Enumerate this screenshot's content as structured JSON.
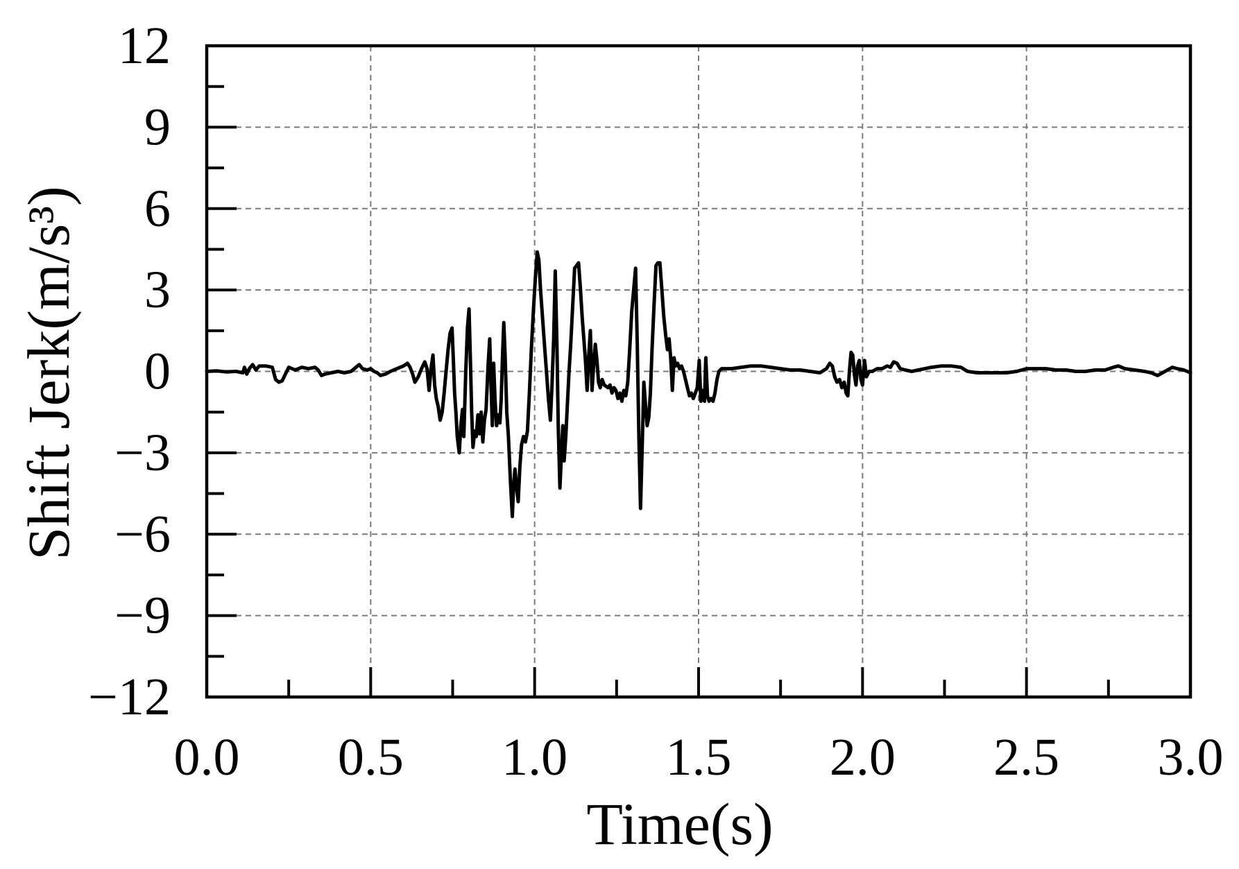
{
  "chart_data": {
    "type": "line",
    "xlabel": "Time(s)",
    "ylabel": "Shift Jerk(m/s³)",
    "xlim": [
      0,
      3
    ],
    "ylim": [
      -12,
      12
    ],
    "xticks": [
      0,
      0.5,
      1,
      1.5,
      2,
      2.5,
      3
    ],
    "xtick_labels": [
      "0.0",
      "0.5",
      "1.0",
      "1.5",
      "2.0",
      "2.5",
      "3.0"
    ],
    "yticks": [
      12,
      9,
      6,
      3,
      0,
      -3,
      -6,
      -9,
      -12
    ],
    "ytick_labels": [
      "12",
      "9",
      "6",
      "3",
      "0",
      "−3",
      "−6",
      "−9",
      "−12"
    ],
    "grid": true,
    "line_color": "#000000",
    "x": [
      0.0,
      0.03,
      0.06,
      0.09,
      0.11,
      0.115,
      0.122,
      0.13,
      0.14,
      0.15,
      0.16,
      0.18,
      0.2,
      0.21,
      0.22,
      0.23,
      0.24,
      0.25,
      0.27,
      0.29,
      0.31,
      0.33,
      0.34,
      0.35,
      0.36,
      0.38,
      0.4,
      0.42,
      0.44,
      0.455,
      0.465,
      0.475,
      0.49,
      0.5,
      0.51,
      0.52,
      0.53,
      0.545,
      0.56,
      0.58,
      0.6,
      0.612,
      0.62,
      0.628,
      0.635,
      0.645,
      0.655,
      0.665,
      0.672,
      0.678,
      0.684,
      0.69,
      0.695,
      0.7,
      0.706,
      0.712,
      0.718,
      0.724,
      0.73,
      0.736,
      0.742,
      0.748,
      0.752,
      0.756,
      0.76,
      0.764,
      0.77,
      0.775,
      0.78,
      0.784,
      0.79,
      0.795,
      0.8,
      0.804,
      0.808,
      0.812,
      0.817,
      0.822,
      0.827,
      0.832,
      0.837,
      0.842,
      0.847,
      0.852,
      0.858,
      0.863,
      0.867,
      0.871,
      0.875,
      0.879,
      0.884,
      0.889,
      0.894,
      0.898,
      0.902,
      0.906,
      0.91,
      0.915,
      0.92,
      0.926,
      0.932,
      0.936,
      0.94,
      0.945,
      0.95,
      0.955,
      0.96,
      0.966,
      0.972,
      0.978,
      0.984,
      0.99,
      0.996,
      1.002,
      1.008,
      1.013,
      1.018,
      1.024,
      1.03,
      1.036,
      1.042,
      1.048,
      1.053,
      1.058,
      1.063,
      1.068,
      1.072,
      1.077,
      1.082,
      1.086,
      1.09,
      1.095,
      1.1,
      1.105,
      1.11,
      1.116,
      1.122,
      1.128,
      1.134,
      1.14,
      1.145,
      1.15,
      1.155,
      1.16,
      1.165,
      1.17,
      1.175,
      1.18,
      1.185,
      1.19,
      1.195,
      1.2,
      1.206,
      1.212,
      1.218,
      1.224,
      1.23,
      1.236,
      1.242,
      1.248,
      1.254,
      1.26,
      1.266,
      1.272,
      1.278,
      1.284,
      1.29,
      1.296,
      1.302,
      1.308,
      1.313,
      1.318,
      1.323,
      1.328,
      1.333,
      1.338,
      1.343,
      1.348,
      1.353,
      1.358,
      1.364,
      1.37,
      1.376,
      1.382,
      1.388,
      1.394,
      1.4,
      1.405,
      1.41,
      1.415,
      1.42,
      1.425,
      1.43,
      1.436,
      1.442,
      1.448,
      1.454,
      1.46,
      1.466,
      1.472,
      1.478,
      1.484,
      1.49,
      1.496,
      1.502,
      1.507,
      1.512,
      1.518,
      1.522,
      1.527,
      1.532,
      1.538,
      1.544,
      1.55,
      1.556,
      1.562,
      1.57,
      1.6,
      1.63,
      1.66,
      1.69,
      1.72,
      1.75,
      1.78,
      1.81,
      1.84,
      1.87,
      1.89,
      1.9,
      1.908,
      1.915,
      1.922,
      1.93,
      1.937,
      1.944,
      1.95,
      1.955,
      1.96,
      1.965,
      1.97,
      1.975,
      1.98,
      1.985,
      1.99,
      1.995,
      2.0,
      2.006,
      2.012,
      2.02,
      2.03,
      2.045,
      2.06,
      2.075,
      2.085,
      2.095,
      2.105,
      2.115,
      2.13,
      2.15,
      2.17,
      2.19,
      2.21,
      2.24,
      2.27,
      2.3,
      2.32,
      2.35,
      2.38,
      2.41,
      2.44,
      2.47,
      2.5,
      2.53,
      2.56,
      2.59,
      2.62,
      2.65,
      2.68,
      2.71,
      2.74,
      2.765,
      2.78,
      2.8,
      2.83,
      2.86,
      2.88,
      2.9,
      2.915,
      2.93,
      2.945,
      2.96,
      2.98,
      3.0
    ],
    "series": [
      {
        "values": [
          0.0,
          0.02,
          -0.02,
          0.0,
          -0.05,
          0.15,
          -0.1,
          0.1,
          0.25,
          0.05,
          0.2,
          0.2,
          0.15,
          -0.3,
          -0.4,
          -0.35,
          -0.1,
          0.15,
          0.05,
          0.15,
          0.1,
          0.15,
          0.05,
          -0.15,
          -0.1,
          -0.05,
          0.0,
          -0.05,
          0.0,
          0.15,
          0.25,
          0.1,
          0.05,
          0.1,
          0.0,
          -0.05,
          -0.15,
          -0.1,
          0.0,
          0.1,
          0.2,
          0.3,
          0.15,
          -0.1,
          -0.4,
          -0.2,
          0.1,
          0.35,
          0.1,
          -0.7,
          0.1,
          0.6,
          -0.5,
          -1.0,
          -1.3,
          -1.8,
          -1.5,
          -0.8,
          0.0,
          0.8,
          1.4,
          1.6,
          0.5,
          -0.8,
          -1.5,
          -2.4,
          -3.0,
          -2.0,
          -1.4,
          -2.4,
          0.0,
          1.6,
          2.3,
          0.5,
          -1.5,
          -2.8,
          -2.2,
          -2.4,
          -1.6,
          -2.3,
          -1.5,
          -2.6,
          -1.8,
          -1.4,
          0.2,
          1.2,
          -0.5,
          -2.0,
          0.3,
          -1.0,
          -2.0,
          -1.6,
          -1.9,
          -1.0,
          0.5,
          1.8,
          0.6,
          -1.5,
          -2.4,
          -4.0,
          -5.35,
          -4.2,
          -3.6,
          -4.3,
          -4.8,
          -3.5,
          -2.7,
          -2.4,
          -2.6,
          -2.2,
          -0.8,
          0.8,
          2.2,
          3.4,
          4.4,
          4.1,
          3.0,
          2.0,
          1.0,
          0.0,
          -1.0,
          -1.8,
          -0.5,
          1.2,
          3.7,
          1.0,
          -2.0,
          -4.3,
          -3.0,
          -2.0,
          -3.3,
          -2.4,
          -1.2,
          0.0,
          1.0,
          2.4,
          3.8,
          3.9,
          4.0,
          3.0,
          2.0,
          1.2,
          0.4,
          -0.7,
          0.6,
          1.5,
          -0.7,
          0.2,
          1.0,
          0.4,
          -0.4,
          -0.6,
          -0.3,
          -0.5,
          -0.55,
          -0.6,
          -0.5,
          -0.8,
          -0.6,
          -0.7,
          -1.0,
          -0.8,
          -1.1,
          -0.7,
          -0.9,
          -0.4,
          0.8,
          2.2,
          3.0,
          3.8,
          1.0,
          -2.5,
          -5.05,
          -2.8,
          -0.4,
          -1.2,
          -2.0,
          -1.7,
          -0.8,
          0.8,
          2.4,
          3.9,
          4.0,
          4.0,
          3.0,
          2.0,
          1.3,
          0.8,
          1.2,
          0.5,
          -0.7,
          0.5,
          0.2,
          0.3,
          0.1,
          0.2,
          0.0,
          -0.3,
          -0.6,
          -0.9,
          -0.8,
          -1.0,
          -0.8,
          -0.6,
          0.4,
          -1.1,
          -0.7,
          -1.1,
          0.5,
          -0.9,
          -1.1,
          -1.0,
          -1.1,
          -0.8,
          -0.3,
          0.0,
          0.1,
          0.1,
          0.15,
          0.2,
          0.2,
          0.15,
          0.1,
          0.05,
          0.05,
          0.0,
          -0.05,
          0.1,
          0.3,
          0.2,
          -0.2,
          -0.4,
          -0.3,
          -0.6,
          -0.4,
          -0.8,
          -0.9,
          0.0,
          0.7,
          0.6,
          -0.1,
          -0.5,
          0.2,
          0.4,
          -0.3,
          -0.5,
          0.4,
          -0.2,
          0.0,
          0.0,
          0.1,
          0.1,
          0.2,
          0.15,
          0.35,
          0.3,
          0.1,
          0.05,
          0.0,
          0.05,
          0.1,
          0.15,
          0.2,
          0.2,
          0.15,
          0.0,
          -0.05,
          -0.05,
          -0.05,
          -0.05,
          0.0,
          0.1,
          0.1,
          0.1,
          0.05,
          0.05,
          0.0,
          0.0,
          0.05,
          0.05,
          0.15,
          0.2,
          0.1,
          0.05,
          0.0,
          -0.05,
          -0.15,
          -0.05,
          0.05,
          0.15,
          0.1,
          0.05,
          -0.05
        ]
      }
    ]
  }
}
